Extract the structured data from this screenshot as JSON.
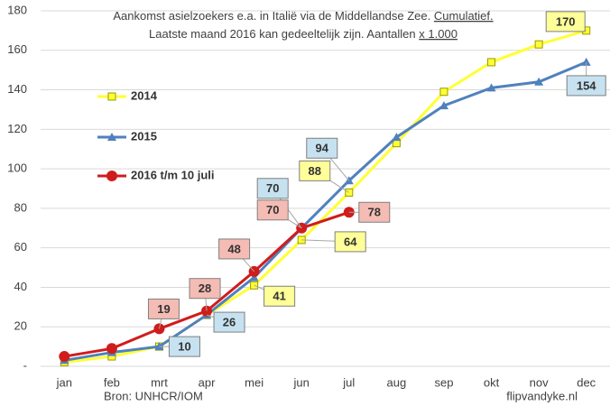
{
  "chart_data": {
    "type": "line",
    "title": "Aankomst asielzoekers e.a. in Italië via de Middellandse Zee.",
    "title_emphasis": "Cumulatief.",
    "subtitle": "Laatste maand 2016 kan gedeeltelijk zijn. Aantallen",
    "subtitle_emphasis": "x 1.000",
    "source": "Bron: UNHCR/IOM",
    "credit": "flipvandyke.nl",
    "categories": [
      "jan",
      "feb",
      "mrt",
      "apr",
      "mei",
      "jun",
      "jul",
      "aug",
      "sep",
      "okt",
      "nov",
      "dec"
    ],
    "series": [
      {
        "name": "2014",
        "color": "#ffff33",
        "marker": "square",
        "label_color": "#ffff99",
        "values": [
          2,
          5,
          10,
          26,
          41,
          64,
          88,
          113,
          139,
          154,
          163,
          170
        ],
        "labeled": [
          4,
          5,
          6,
          11
        ]
      },
      {
        "name": "2015",
        "color": "#4f81bd",
        "marker": "triangle",
        "label_color": "#c6e2f0",
        "values": [
          3,
          7,
          10,
          26,
          45,
          70,
          94,
          116,
          132,
          141,
          144,
          154
        ],
        "labeled": [
          2,
          3,
          5,
          6,
          11
        ]
      },
      {
        "name": "2016 t/m 10 juli",
        "color": "#d01c1c",
        "marker": "circle",
        "label_color": "#f4bcb4",
        "values": [
          5,
          9,
          19,
          28,
          48,
          70,
          78,
          null,
          null,
          null,
          null,
          null
        ],
        "labeled": [
          2,
          3,
          4,
          5,
          6
        ]
      }
    ],
    "ylim": [
      0,
      180
    ],
    "yticks": [
      {
        "value": 0,
        "label": "-"
      },
      20,
      40,
      60,
      80,
      100,
      120,
      140,
      160,
      180
    ],
    "grid": true
  }
}
